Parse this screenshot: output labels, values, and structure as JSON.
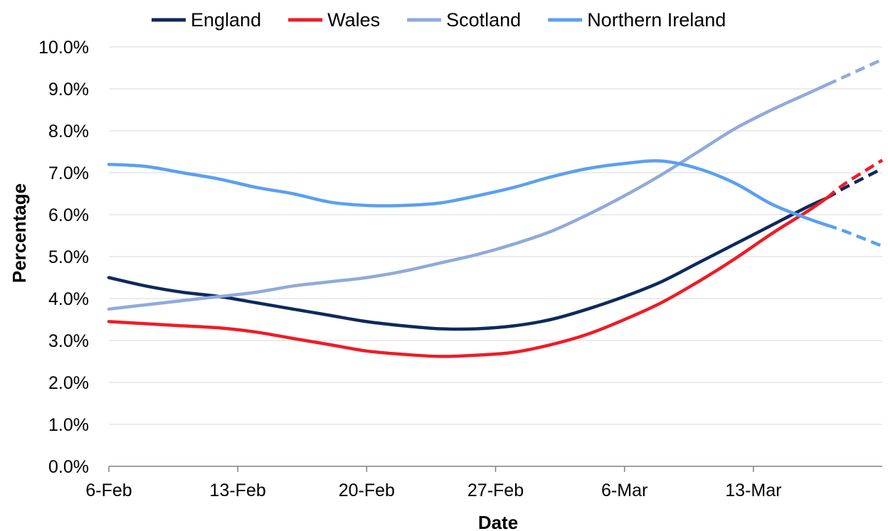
{
  "chart_data": {
    "type": "line",
    "xlabel": "Date",
    "ylabel": "Percentage",
    "x_ticks": [
      "6-Feb",
      "13-Feb",
      "20-Feb",
      "27-Feb",
      "6-Mar",
      "13-Mar"
    ],
    "y_ticks": [
      "0.0%",
      "1.0%",
      "2.0%",
      "3.0%",
      "4.0%",
      "5.0%",
      "6.0%",
      "7.0%",
      "8.0%",
      "9.0%",
      "10.0%"
    ],
    "ylim": [
      0,
      10
    ],
    "xlim": [
      "2021-02-06",
      "2021-03-20"
    ],
    "grid": "horizontal",
    "legend_position": "top",
    "projection_style": "dashed",
    "series": [
      {
        "name": "England",
        "color": "#0d2a5b",
        "solid_until": "2021-03-17",
        "points": [
          [
            "2021-02-06",
            4.5
          ],
          [
            "2021-02-08",
            4.3
          ],
          [
            "2021-02-10",
            4.15
          ],
          [
            "2021-02-12",
            4.05
          ],
          [
            "2021-02-14",
            3.9
          ],
          [
            "2021-02-16",
            3.75
          ],
          [
            "2021-02-18",
            3.6
          ],
          [
            "2021-02-20",
            3.45
          ],
          [
            "2021-02-22",
            3.35
          ],
          [
            "2021-02-24",
            3.28
          ],
          [
            "2021-02-26",
            3.28
          ],
          [
            "2021-02-28",
            3.35
          ],
          [
            "2021-03-02",
            3.5
          ],
          [
            "2021-03-04",
            3.75
          ],
          [
            "2021-03-06",
            4.05
          ],
          [
            "2021-03-08",
            4.4
          ],
          [
            "2021-03-10",
            4.85
          ],
          [
            "2021-03-12",
            5.3
          ],
          [
            "2021-03-14",
            5.75
          ],
          [
            "2021-03-16",
            6.2
          ],
          [
            "2021-03-17",
            6.4
          ],
          [
            "2021-03-18",
            6.65
          ],
          [
            "2021-03-20",
            7.1
          ]
        ]
      },
      {
        "name": "Wales",
        "color": "#ee1c25",
        "solid_until": "2021-03-17",
        "points": [
          [
            "2021-02-06",
            3.45
          ],
          [
            "2021-02-08",
            3.4
          ],
          [
            "2021-02-10",
            3.35
          ],
          [
            "2021-02-12",
            3.3
          ],
          [
            "2021-02-14",
            3.2
          ],
          [
            "2021-02-16",
            3.05
          ],
          [
            "2021-02-18",
            2.9
          ],
          [
            "2021-02-20",
            2.75
          ],
          [
            "2021-02-22",
            2.67
          ],
          [
            "2021-02-24",
            2.62
          ],
          [
            "2021-02-26",
            2.65
          ],
          [
            "2021-02-28",
            2.72
          ],
          [
            "2021-03-02",
            2.9
          ],
          [
            "2021-03-04",
            3.15
          ],
          [
            "2021-03-06",
            3.5
          ],
          [
            "2021-03-08",
            3.9
          ],
          [
            "2021-03-10",
            4.4
          ],
          [
            "2021-03-12",
            4.95
          ],
          [
            "2021-03-14",
            5.55
          ],
          [
            "2021-03-16",
            6.1
          ],
          [
            "2021-03-17",
            6.4
          ],
          [
            "2021-03-18",
            6.75
          ],
          [
            "2021-03-20",
            7.3
          ]
        ]
      },
      {
        "name": "Scotland",
        "color": "#8faadc",
        "solid_until": "2021-03-17",
        "points": [
          [
            "2021-02-06",
            3.75
          ],
          [
            "2021-02-08",
            3.85
          ],
          [
            "2021-02-10",
            3.95
          ],
          [
            "2021-02-12",
            4.05
          ],
          [
            "2021-02-14",
            4.15
          ],
          [
            "2021-02-16",
            4.3
          ],
          [
            "2021-02-18",
            4.4
          ],
          [
            "2021-02-20",
            4.5
          ],
          [
            "2021-02-22",
            4.65
          ],
          [
            "2021-02-24",
            4.85
          ],
          [
            "2021-02-26",
            5.05
          ],
          [
            "2021-02-28",
            5.3
          ],
          [
            "2021-03-02",
            5.6
          ],
          [
            "2021-03-04",
            6.0
          ],
          [
            "2021-03-06",
            6.45
          ],
          [
            "2021-03-08",
            6.95
          ],
          [
            "2021-03-10",
            7.5
          ],
          [
            "2021-03-12",
            8.05
          ],
          [
            "2021-03-14",
            8.5
          ],
          [
            "2021-03-16",
            8.9
          ],
          [
            "2021-03-17",
            9.1
          ],
          [
            "2021-03-18",
            9.3
          ],
          [
            "2021-03-20",
            9.7
          ]
        ]
      },
      {
        "name": "Northern Ireland",
        "color": "#5aa0f0",
        "solid_until": "2021-03-17",
        "points": [
          [
            "2021-02-06",
            7.2
          ],
          [
            "2021-02-08",
            7.15
          ],
          [
            "2021-02-10",
            7.0
          ],
          [
            "2021-02-12",
            6.85
          ],
          [
            "2021-02-14",
            6.65
          ],
          [
            "2021-02-16",
            6.5
          ],
          [
            "2021-02-18",
            6.3
          ],
          [
            "2021-02-20",
            6.22
          ],
          [
            "2021-02-22",
            6.22
          ],
          [
            "2021-02-24",
            6.28
          ],
          [
            "2021-02-26",
            6.45
          ],
          [
            "2021-02-28",
            6.65
          ],
          [
            "2021-03-02",
            6.9
          ],
          [
            "2021-03-04",
            7.1
          ],
          [
            "2021-03-06",
            7.22
          ],
          [
            "2021-03-08",
            7.28
          ],
          [
            "2021-03-10",
            7.1
          ],
          [
            "2021-03-12",
            6.75
          ],
          [
            "2021-03-14",
            6.25
          ],
          [
            "2021-03-16",
            5.9
          ],
          [
            "2021-03-17",
            5.75
          ],
          [
            "2021-03-18",
            5.6
          ],
          [
            "2021-03-20",
            5.25
          ]
        ]
      }
    ]
  }
}
